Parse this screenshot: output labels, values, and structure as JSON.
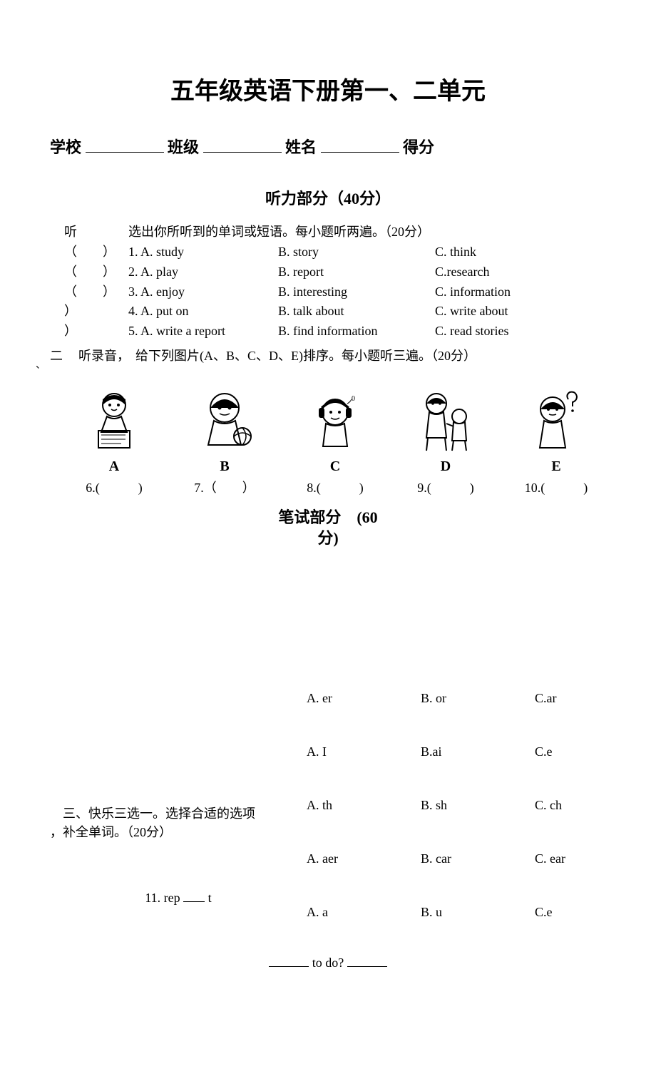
{
  "title": "五年级英语下册第一、二单元",
  "header": {
    "school_label": "学校",
    "class_label": "班级",
    "name_label": "姓名",
    "score_label": "得分"
  },
  "listening": {
    "header": "听力部分（40分）",
    "section1": {
      "left_label": "听",
      "instruction": "选出你所听到的单词或短语。每小题听两遍。（20分）",
      "questions": [
        {
          "paren": "（　　）",
          "a": "1. A. study",
          "b": "B. story",
          "c": "C. think"
        },
        {
          "paren": "（　　）",
          "a": "2. A. play",
          "b": "B. report",
          "c": "C.research"
        },
        {
          "paren": "（　　）",
          "a": "3. A. enjoy",
          "b": "B. interesting",
          "c": "C. information"
        },
        {
          "paren": "）",
          "a": "4. A. put on",
          "b": "B. talk about",
          "c": "C. write about"
        },
        {
          "paren": "）",
          "a": "5. A. write a report",
          "b": "B. find information",
          "c": "C. read stories"
        }
      ]
    },
    "section2": {
      "left_num": "二",
      "left_label": "听录音，",
      "instruction": "给下列图片(A、B、C、D、E)排序。每小题听三遍。（20分）",
      "labels": [
        "A",
        "B",
        "C",
        "D",
        "E"
      ],
      "answers": [
        "6.(　　　)",
        "7.（　　）",
        "8.(　　　)",
        "9.(　　　)",
        "10.(　　　)"
      ],
      "tick_mark": "、"
    }
  },
  "written": {
    "header_line1": "笔试部分　(60",
    "header_line2": "分)"
  },
  "section3": {
    "instruction_l1": "　三、快乐三选一。选择合适的选项",
    "instruction_l2": "，补全单词。（20分）",
    "q11_prefix": "11. rep",
    "q11_suffix": "t",
    "choices": [
      {
        "a": "A. er",
        "b": "B. or",
        "c": "C.ar"
      },
      {
        "a": "A. I",
        "b": "B.ai",
        "c": "C.e"
      },
      {
        "a": "A. th",
        "b": "B. sh",
        "c": "C. ch"
      },
      {
        "a": "A. aer",
        "b": "B. car",
        "c": "C. ear"
      },
      {
        "a": "A. a",
        "b": "B. u",
        "c": "C.e"
      }
    ]
  },
  "bottom_fragment": " to do?",
  "colors": {
    "text": "#000000",
    "background": "#ffffff"
  },
  "images": {
    "description": "Five small black-and-white cartoon figures of children doing activities (writing, holding ball, listening with headphones, walking with child, thinking with question mark)",
    "note": "Replaced with simple inline SVG placeholders"
  }
}
